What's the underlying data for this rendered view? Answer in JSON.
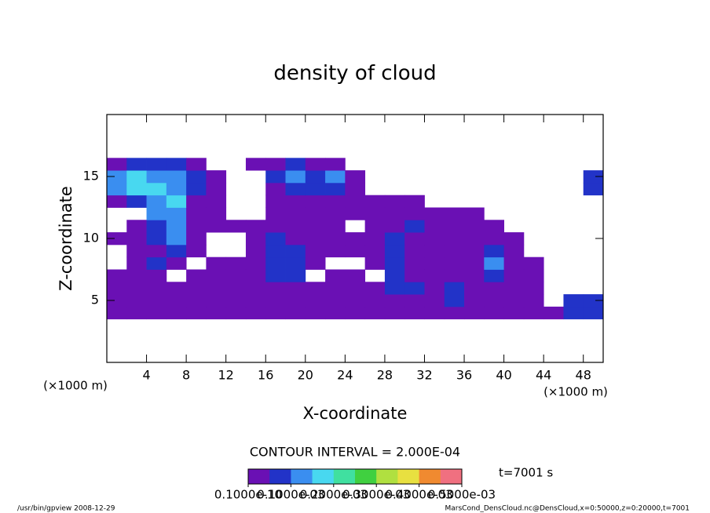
{
  "chart_data": {
    "type": "heatmap",
    "title": "density of cloud",
    "x_label": "X-coordinate",
    "y_label": "Z-coordinate",
    "x_unit": "(×1000 m)",
    "y_unit": "(×1000 m)",
    "xlim": [
      0,
      50
    ],
    "ylim": [
      0,
      20
    ],
    "xticks": [
      4,
      8,
      12,
      16,
      20,
      24,
      28,
      32,
      36,
      40,
      44,
      48
    ],
    "yticks": [
      5,
      10,
      15
    ],
    "x": [
      1,
      3,
      5,
      7,
      9,
      11,
      13,
      15,
      17,
      19,
      21,
      23,
      25,
      27,
      29,
      31,
      33,
      35,
      37,
      39,
      41,
      43,
      45,
      47,
      49
    ],
    "y": [
      4,
      5,
      6,
      7,
      8,
      9,
      10,
      11,
      12,
      13,
      14,
      15,
      16
    ],
    "values": [
      [
        3e-05,
        3e-05,
        3e-05,
        3e-05,
        3e-05,
        3e-05,
        3e-05,
        3e-05,
        3e-05,
        3e-05,
        3e-05,
        3e-05,
        3e-05,
        3e-05,
        3e-05,
        3e-05,
        3e-05,
        3e-05,
        3e-05,
        3e-05,
        3e-05,
        3e-05,
        3e-05,
        8e-05,
        8e-05
      ],
      [
        3e-05,
        3e-05,
        3e-05,
        3e-05,
        3e-05,
        3e-05,
        3e-05,
        3e-05,
        3e-05,
        3e-05,
        3e-05,
        3e-05,
        3e-05,
        3e-05,
        3e-05,
        3e-05,
        3e-05,
        8e-05,
        3e-05,
        3e-05,
        3e-05,
        3e-05,
        null,
        8e-05,
        8e-05
      ],
      [
        3e-05,
        3e-05,
        3e-05,
        3e-05,
        3e-05,
        3e-05,
        3e-05,
        3e-05,
        3e-05,
        3e-05,
        3e-05,
        3e-05,
        3e-05,
        3e-05,
        8e-05,
        8e-05,
        3e-05,
        8e-05,
        3e-05,
        3e-05,
        3e-05,
        3e-05,
        null,
        null,
        null
      ],
      [
        3e-05,
        3e-05,
        3e-05,
        null,
        3e-05,
        3e-05,
        3e-05,
        3e-05,
        8e-05,
        8e-05,
        null,
        3e-05,
        3e-05,
        null,
        8e-05,
        3e-05,
        3e-05,
        3e-05,
        3e-05,
        8e-05,
        3e-05,
        3e-05,
        null,
        null,
        null
      ],
      [
        null,
        3e-05,
        8e-05,
        3e-05,
        null,
        3e-05,
        3e-05,
        3e-05,
        8e-05,
        8e-05,
        3e-05,
        null,
        null,
        3e-05,
        8e-05,
        3e-05,
        3e-05,
        3e-05,
        3e-05,
        0.00012,
        3e-05,
        3e-05,
        null,
        null,
        null
      ],
      [
        null,
        3e-05,
        3e-05,
        8e-05,
        3e-05,
        null,
        null,
        3e-05,
        8e-05,
        8e-05,
        3e-05,
        3e-05,
        3e-05,
        3e-05,
        8e-05,
        3e-05,
        3e-05,
        3e-05,
        3e-05,
        8e-05,
        3e-05,
        null,
        null,
        null,
        null
      ],
      [
        3e-05,
        3e-05,
        8e-05,
        0.00012,
        3e-05,
        null,
        null,
        3e-05,
        8e-05,
        3e-05,
        3e-05,
        3e-05,
        3e-05,
        3e-05,
        8e-05,
        3e-05,
        3e-05,
        3e-05,
        3e-05,
        3e-05,
        3e-05,
        null,
        null,
        null,
        null
      ],
      [
        null,
        3e-05,
        8e-05,
        0.00012,
        3e-05,
        3e-05,
        3e-05,
        3e-05,
        3e-05,
        3e-05,
        3e-05,
        3e-05,
        null,
        3e-05,
        3e-05,
        8e-05,
        3e-05,
        3e-05,
        3e-05,
        3e-05,
        null,
        null,
        null,
        null,
        null
      ],
      [
        null,
        null,
        0.00012,
        0.00012,
        3e-05,
        3e-05,
        null,
        null,
        3e-05,
        3e-05,
        3e-05,
        3e-05,
        3e-05,
        3e-05,
        3e-05,
        3e-05,
        3e-05,
        3e-05,
        3e-05,
        null,
        null,
        null,
        null,
        null,
        null
      ],
      [
        3e-05,
        8e-05,
        0.00012,
        0.00017,
        3e-05,
        3e-05,
        null,
        null,
        3e-05,
        3e-05,
        3e-05,
        3e-05,
        3e-05,
        3e-05,
        3e-05,
        3e-05,
        null,
        null,
        null,
        null,
        null,
        null,
        null,
        null,
        null
      ],
      [
        0.00012,
        0.00017,
        0.00017,
        0.00012,
        8e-05,
        3e-05,
        null,
        null,
        3e-05,
        8e-05,
        8e-05,
        8e-05,
        3e-05,
        null,
        null,
        null,
        null,
        null,
        null,
        null,
        null,
        null,
        null,
        null,
        8e-05
      ],
      [
        0.00012,
        0.00017,
        0.00012,
        0.00012,
        8e-05,
        3e-05,
        null,
        null,
        8e-05,
        0.00012,
        8e-05,
        0.00012,
        3e-05,
        null,
        null,
        null,
        null,
        null,
        null,
        null,
        null,
        null,
        null,
        null,
        8e-05
      ],
      [
        3e-05,
        8e-05,
        8e-05,
        8e-05,
        3e-05,
        null,
        null,
        3e-05,
        3e-05,
        8e-05,
        3e-05,
        3e-05,
        null,
        null,
        null,
        null,
        null,
        null,
        null,
        null,
        null,
        null,
        null,
        null,
        null
      ]
    ],
    "colorbar_lim": [
      0,
      0.0005
    ],
    "colors": [
      "#6a10b4",
      "#2233c8",
      "#3a8ef0",
      "#48d8f0",
      "#40e0a0",
      "#40d040",
      "#b0e040",
      "#e8e040",
      "#f08a30",
      "#f07080"
    ],
    "colorbar_ticks": [
      {
        "value": 1e-11,
        "label": "0.1000e-10"
      },
      {
        "value": 0.0001,
        "label": "0.1000e-03"
      },
      {
        "value": 0.0002,
        "label": "0.2000e-03"
      },
      {
        "value": 0.0003,
        "label": "0.3000e-03"
      },
      {
        "value": 0.0004,
        "label": "0.4000e-03"
      },
      {
        "value": 0.0005,
        "label": "0.5000e-03"
      }
    ],
    "contour_interval": "CONTOUR INTERVAL = 2.000E-04",
    "time_label": "t=7001 s",
    "footer_left": "/usr/bin/gpview  2008-12-29",
    "footer_right": "MarsCond_DensCloud.nc@DensCloud,x=0:50000,z=0:20000,t=7001"
  }
}
